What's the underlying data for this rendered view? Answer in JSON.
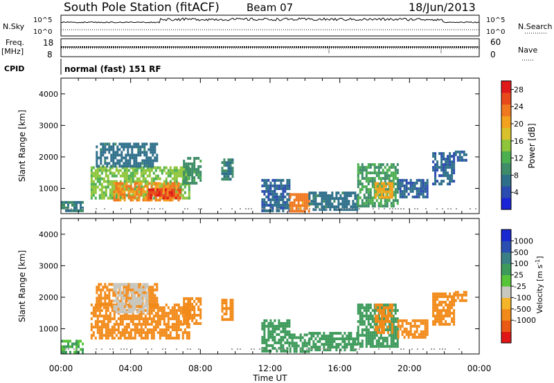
{
  "header": {
    "station": "South Pole Station (fitACF)",
    "beam": "Beam 07",
    "date": "18/Jun/2013"
  },
  "top_panels": {
    "nsky_label": "N.Sky",
    "nsky_ticks": [
      "10^5",
      "10^0"
    ],
    "nsearch_label": "N.Search",
    "nsearch_ticks": [
      "10^5",
      "10^0"
    ],
    "freq_label": "Freq.",
    "freq_unit": "[MHz]",
    "freq_ticks": [
      "18",
      "8"
    ],
    "nave_label": "Nave",
    "nave_ticks": [
      "60",
      "0"
    ],
    "cpid_label": "CPID",
    "cpid_text": "normal (fast) 151 RF"
  },
  "colors": {
    "power_scale": [
      "#1a24d6",
      "#2b4bb0",
      "#2e6f8a",
      "#3e8c68",
      "#4caf50",
      "#8fc53a",
      "#d8c12a",
      "#f3a21f",
      "#f07820",
      "#e84a1c",
      "#e01a1a"
    ],
    "velocity_scale": [
      "#e01515",
      "#ea5a14",
      "#f28a1a",
      "#f5b52a",
      "#c8c8c0",
      "#57c43a",
      "#3d9a5a",
      "#3a7f86",
      "#2b4fb0",
      "#1a28d0"
    ]
  },
  "chart_data": [
    {
      "type": "heatmap",
      "title": "",
      "xlabel": "Time UT",
      "ylabel": "Slant Range [km]",
      "x_tick_labels": [
        "00:00",
        "04:00",
        "08:00",
        "12:00",
        "16:00",
        "20:00",
        "00:00"
      ],
      "y_tick_labels": [
        "1000",
        "2000",
        "3000",
        "4000"
      ],
      "ylim": [
        200,
        4500
      ],
      "colorbar_label": "Power [dB]",
      "colorbar_ticks": [
        "4",
        "8",
        "12",
        "16",
        "20",
        "24",
        "28"
      ],
      "value_range": [
        0,
        30
      ],
      "regions": [
        {
          "t0": 0.0,
          "t1": 1.2,
          "r0": 250,
          "r1": 600,
          "v": 8
        },
        {
          "t0": 1.7,
          "t1": 7.4,
          "r0": 700,
          "r1": 1700,
          "v": 14
        },
        {
          "t0": 3.0,
          "t1": 6.8,
          "r0": 650,
          "r1": 1200,
          "v": 22
        },
        {
          "t0": 5.0,
          "t1": 6.8,
          "r0": 700,
          "r1": 1000,
          "v": 27
        },
        {
          "t0": 2.0,
          "t1": 5.5,
          "r0": 1700,
          "r1": 2450,
          "v": 7
        },
        {
          "t0": 7.0,
          "t1": 8.0,
          "r0": 1200,
          "r1": 2000,
          "v": 10
        },
        {
          "t0": 9.2,
          "t1": 9.9,
          "r0": 1300,
          "r1": 1950,
          "v": 8
        },
        {
          "t0": 11.5,
          "t1": 13.1,
          "r0": 300,
          "r1": 1300,
          "v": 6
        },
        {
          "t0": 13.1,
          "t1": 14.2,
          "r0": 300,
          "r1": 850,
          "v": 23
        },
        {
          "t0": 14.2,
          "t1": 17.0,
          "r0": 300,
          "r1": 900,
          "v": 7
        },
        {
          "t0": 17.0,
          "t1": 19.3,
          "r0": 400,
          "r1": 1800,
          "v": 11
        },
        {
          "t0": 18.0,
          "t1": 19.0,
          "r0": 700,
          "r1": 1200,
          "v": 20
        },
        {
          "t0": 19.3,
          "t1": 21.0,
          "r0": 700,
          "r1": 1300,
          "v": 6
        },
        {
          "t0": 21.3,
          "t1": 22.6,
          "r0": 1100,
          "r1": 2150,
          "v": 6
        },
        {
          "t0": 22.6,
          "t1": 23.3,
          "r0": 1900,
          "r1": 2200,
          "v": 6
        }
      ]
    },
    {
      "type": "heatmap",
      "title": "",
      "xlabel": "Time UT",
      "ylabel": "Slant Range [km]",
      "x_tick_labels": [
        "00:00",
        "04:00",
        "08:00",
        "12:00",
        "16:00",
        "20:00",
        "00:00"
      ],
      "y_tick_labels": [
        "1000",
        "2000",
        "3000",
        "4000"
      ],
      "ylim": [
        200,
        4500
      ],
      "colorbar_label": "Velocity [m s^-1]",
      "colorbar_ticks": [
        "1000",
        "500",
        "100",
        "25",
        "-25",
        "-100",
        "-500",
        "-1000"
      ],
      "value_range": [
        -1000,
        1000
      ],
      "regions": [
        {
          "t0": 0.0,
          "t1": 1.2,
          "r0": 250,
          "r1": 650,
          "v": 100
        },
        {
          "t0": 1.7,
          "t1": 7.4,
          "r0": 700,
          "r1": 1800,
          "v": -150
        },
        {
          "t0": 2.0,
          "t1": 5.5,
          "r0": 1700,
          "r1": 2450,
          "v": -180
        },
        {
          "t0": 3.0,
          "t1": 5.0,
          "r0": 1500,
          "r1": 2450,
          "v": 0
        },
        {
          "t0": 7.0,
          "t1": 8.0,
          "r0": 1200,
          "r1": 2000,
          "v": -200
        },
        {
          "t0": 9.2,
          "t1": 9.9,
          "r0": 1300,
          "r1": 1950,
          "v": -300
        },
        {
          "t0": 11.5,
          "t1": 13.1,
          "r0": 300,
          "r1": 1300,
          "v": 150
        },
        {
          "t0": 13.1,
          "t1": 14.2,
          "r0": 300,
          "r1": 850,
          "v": 200
        },
        {
          "t0": 14.2,
          "t1": 17.0,
          "r0": 300,
          "r1": 900,
          "v": 150
        },
        {
          "t0": 17.0,
          "t1": 19.3,
          "r0": 400,
          "r1": 1800,
          "v": 300
        },
        {
          "t0": 18.0,
          "t1": 19.0,
          "r0": 900,
          "r1": 1800,
          "v": -250
        },
        {
          "t0": 19.3,
          "t1": 21.0,
          "r0": 700,
          "r1": 1300,
          "v": -150
        },
        {
          "t0": 21.3,
          "t1": 22.6,
          "r0": 1100,
          "r1": 2150,
          "v": -400
        },
        {
          "t0": 22.6,
          "t1": 23.3,
          "r0": 1900,
          "r1": 2200,
          "v": -200
        }
      ]
    }
  ]
}
